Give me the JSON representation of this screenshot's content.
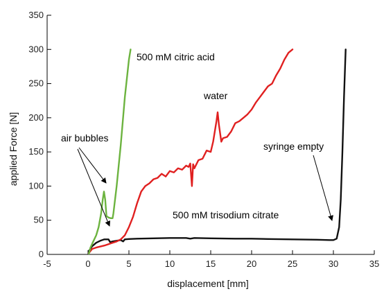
{
  "chart_data": {
    "type": "line",
    "xlabel": "displacement [mm]",
    "ylabel": "applied Force [N]",
    "xlim": [
      -5,
      35
    ],
    "ylim": [
      0,
      350
    ],
    "xticks": [
      "-5",
      "0",
      "5",
      "10",
      "15",
      "20",
      "25",
      "30",
      "35"
    ],
    "yticks": [
      "0",
      "50",
      "100",
      "150",
      "200",
      "250",
      "300",
      "350"
    ],
    "grid": false,
    "series": [
      {
        "name": "500 mM citric acid",
        "color": "#6cb33f",
        "points": [
          [
            0.1,
            1
          ],
          [
            0.3,
            10
          ],
          [
            0.6,
            18
          ],
          [
            1.0,
            28
          ],
          [
            1.3,
            40
          ],
          [
            1.6,
            60
          ],
          [
            1.8,
            80
          ],
          [
            1.95,
            92
          ],
          [
            2.1,
            80
          ],
          [
            2.25,
            56
          ],
          [
            2.5,
            54
          ],
          [
            2.8,
            53
          ],
          [
            3.0,
            53
          ],
          [
            3.1,
            60
          ],
          [
            3.5,
            100
          ],
          [
            4.0,
            160
          ],
          [
            4.5,
            230
          ],
          [
            5.0,
            285
          ],
          [
            5.2,
            300
          ]
        ]
      },
      {
        "name": "water",
        "color": "#e02020",
        "points": [
          [
            0.1,
            2
          ],
          [
            0.5,
            8
          ],
          [
            1.0,
            10
          ],
          [
            2.0,
            13
          ],
          [
            3.0,
            17
          ],
          [
            3.5,
            19
          ],
          [
            4.0,
            22
          ],
          [
            4.5,
            28
          ],
          [
            5.0,
            40
          ],
          [
            5.5,
            55
          ],
          [
            6.0,
            75
          ],
          [
            6.3,
            85
          ],
          [
            6.5,
            92
          ],
          [
            7.0,
            100
          ],
          [
            7.5,
            104
          ],
          [
            8.0,
            110
          ],
          [
            8.5,
            112
          ],
          [
            9.0,
            118
          ],
          [
            9.5,
            114
          ],
          [
            10.0,
            122
          ],
          [
            10.5,
            120
          ],
          [
            11.0,
            126
          ],
          [
            11.5,
            124
          ],
          [
            12.0,
            130
          ],
          [
            12.3,
            128
          ],
          [
            12.5,
            133
          ],
          [
            12.7,
            100
          ],
          [
            12.85,
            132
          ],
          [
            13.0,
            126
          ],
          [
            13.5,
            138
          ],
          [
            14.0,
            140
          ],
          [
            14.5,
            152
          ],
          [
            15.0,
            150
          ],
          [
            15.3,
            165
          ],
          [
            15.7,
            195
          ],
          [
            15.85,
            208
          ],
          [
            16.0,
            190
          ],
          [
            16.3,
            165
          ],
          [
            16.5,
            170
          ],
          [
            17.0,
            172
          ],
          [
            17.5,
            180
          ],
          [
            18.0,
            192
          ],
          [
            18.5,
            195
          ],
          [
            19.0,
            200
          ],
          [
            19.5,
            205
          ],
          [
            20.0,
            212
          ],
          [
            20.5,
            222
          ],
          [
            21.0,
            230
          ],
          [
            21.5,
            238
          ],
          [
            22.0,
            246
          ],
          [
            22.5,
            250
          ],
          [
            23.0,
            262
          ],
          [
            23.5,
            272
          ],
          [
            24.0,
            285
          ],
          [
            24.5,
            295
          ],
          [
            25.0,
            300
          ]
        ]
      },
      {
        "name": "500 mM trisodium citrate",
        "color": "#111111",
        "points": [
          [
            0.1,
            5
          ],
          [
            0.5,
            12
          ],
          [
            1.0,
            17
          ],
          [
            1.5,
            20
          ],
          [
            2.0,
            22
          ],
          [
            2.5,
            22
          ],
          [
            2.7,
            18
          ],
          [
            3.0,
            19
          ],
          [
            3.5,
            20
          ],
          [
            4.0,
            21
          ],
          [
            4.3,
            19
          ],
          [
            4.5,
            22
          ],
          [
            5.0,
            22.5
          ],
          [
            6.0,
            23
          ],
          [
            8.0,
            23.5
          ],
          [
            10.0,
            24
          ],
          [
            12.0,
            24
          ],
          [
            12.5,
            23
          ],
          [
            13.0,
            24
          ],
          [
            15.0,
            23.5
          ],
          [
            18.0,
            23
          ],
          [
            20.0,
            23
          ],
          [
            22.0,
            22.5
          ],
          [
            25.0,
            22
          ],
          [
            28.0,
            21.5
          ],
          [
            29.5,
            21
          ],
          [
            30.0,
            21
          ],
          [
            30.4,
            23
          ],
          [
            30.7,
            40
          ],
          [
            30.9,
            80
          ],
          [
            31.1,
            150
          ],
          [
            31.3,
            230
          ],
          [
            31.5,
            300
          ]
        ]
      }
    ],
    "annotations": [
      {
        "text": "500 mM citric acid"
      },
      {
        "text": "water"
      },
      {
        "text": "air bubbles"
      },
      {
        "text": "syringe empty"
      },
      {
        "text": "500 mM trisodium citrate"
      }
    ]
  }
}
